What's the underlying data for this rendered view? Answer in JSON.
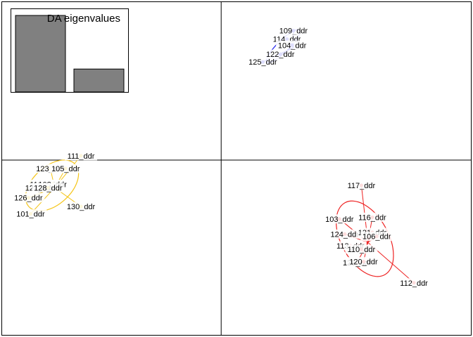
{
  "chart_data": {
    "type": "scatter",
    "title": "",
    "xlabel": "",
    "ylabel": "",
    "xlim": [
      -5.0,
      5.7
    ],
    "ylim": [
      -5.2,
      4.7
    ],
    "grid": false,
    "axes_cross_at": [
      0,
      0
    ],
    "inset": {
      "type": "bar",
      "title": "DA eigenvalues",
      "values": [
        1.0,
        0.3
      ]
    },
    "groups": [
      {
        "color": "#2222ee",
        "centroid": [
          1.65,
          3.35
        ],
        "points": [
          {
            "label": "109_ddr",
            "x": 1.65,
            "y": 3.85
          },
          {
            "label": "114_ddr",
            "x": 1.5,
            "y": 3.6
          },
          {
            "label": "104_ddr",
            "x": 1.62,
            "y": 3.42
          },
          {
            "label": "122_ddr",
            "x": 1.35,
            "y": 3.15
          },
          {
            "label": "125_ddr",
            "x": 0.95,
            "y": 2.92
          }
        ]
      },
      {
        "color": "#f5c518",
        "centroid": [
          -3.8,
          -0.82
        ],
        "points": [
          {
            "label": "111_ddr",
            "x": -3.2,
            "y": 0.13
          },
          {
            "label": "123_ddr",
            "x": -3.9,
            "y": -0.25
          },
          {
            "label": "105_ddr",
            "x": -3.55,
            "y": -0.25
          },
          {
            "label": "119_ddr",
            "x": -4.05,
            "y": -0.72
          },
          {
            "label": "108_ddr",
            "x": -3.85,
            "y": -0.72
          },
          {
            "label": "127_ddr",
            "x": -4.15,
            "y": -0.82
          },
          {
            "label": "128_ddr",
            "x": -3.95,
            "y": -0.82
          },
          {
            "label": "126_ddr",
            "x": -4.4,
            "y": -1.12
          },
          {
            "label": "101_ddr",
            "x": -4.35,
            "y": -1.6
          },
          {
            "label": "130_ddr",
            "x": -3.2,
            "y": -1.38
          }
        ]
      },
      {
        "color": "#ee2222",
        "centroid": [
          3.35,
          -2.45
        ],
        "points": [
          {
            "label": "117_ddr",
            "x": 3.2,
            "y": -0.75
          },
          {
            "label": "103_ddr",
            "x": 2.7,
            "y": -1.75
          },
          {
            "label": "116_ddr",
            "x": 3.45,
            "y": -1.7
          },
          {
            "label": "124_ddr",
            "x": 2.82,
            "y": -2.2
          },
          {
            "label": "131_ddr",
            "x": 3.45,
            "y": -2.15
          },
          {
            "label": "106_ddr",
            "x": 3.55,
            "y": -2.27
          },
          {
            "label": "113_ddr",
            "x": 2.95,
            "y": -2.55
          },
          {
            "label": "110_ddr",
            "x": 3.2,
            "y": -2.65
          },
          {
            "label": "129_ddr",
            "x": 3.1,
            "y": -3.05
          },
          {
            "label": "120_ddr",
            "x": 3.25,
            "y": -3.02
          },
          {
            "label": "112_ddr",
            "x": 4.4,
            "y": -3.65
          }
        ]
      }
    ]
  }
}
